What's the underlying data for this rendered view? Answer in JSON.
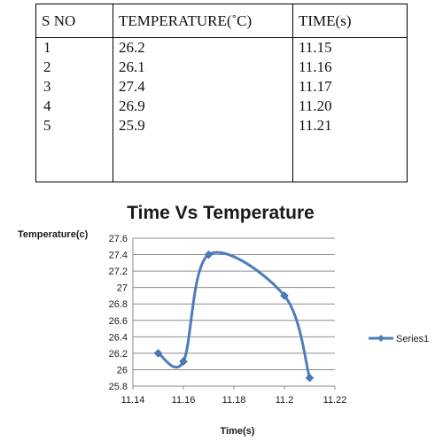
{
  "table": {
    "headers": [
      "S NO",
      "TEMPERATURE(˚C)",
      "TIME(s)"
    ],
    "rows": [
      [
        "1",
        "26.2",
        "11.15"
      ],
      [
        "2",
        "26.1",
        "11.16"
      ],
      [
        "3",
        "27.4",
        "11.17"
      ],
      [
        "4",
        "26.9",
        "11.20"
      ],
      [
        "5",
        "25.9",
        "11.21"
      ]
    ]
  },
  "chart_data": {
    "type": "line",
    "title": "Time Vs Temperature",
    "xlabel": "Time(s)",
    "ylabel": "Temperature(c)",
    "xlim": [
      11.14,
      11.22
    ],
    "ylim": [
      25.8,
      27.6
    ],
    "x_ticks": [
      "11.14",
      "11.16",
      "11.18",
      "11.2",
      "11.22"
    ],
    "y_ticks": [
      "25.8",
      "26",
      "26.2",
      "26.4",
      "26.6",
      "26.8",
      "27",
      "27.2",
      "27.4",
      "27.6"
    ],
    "grid": true,
    "smooth": true,
    "legend_position": "right",
    "series": [
      {
        "name": "Series1",
        "color": "#4a7ebb",
        "x": [
          11.15,
          11.16,
          11.17,
          11.2,
          11.21
        ],
        "y": [
          26.2,
          26.1,
          27.4,
          26.9,
          25.9
        ]
      }
    ]
  }
}
